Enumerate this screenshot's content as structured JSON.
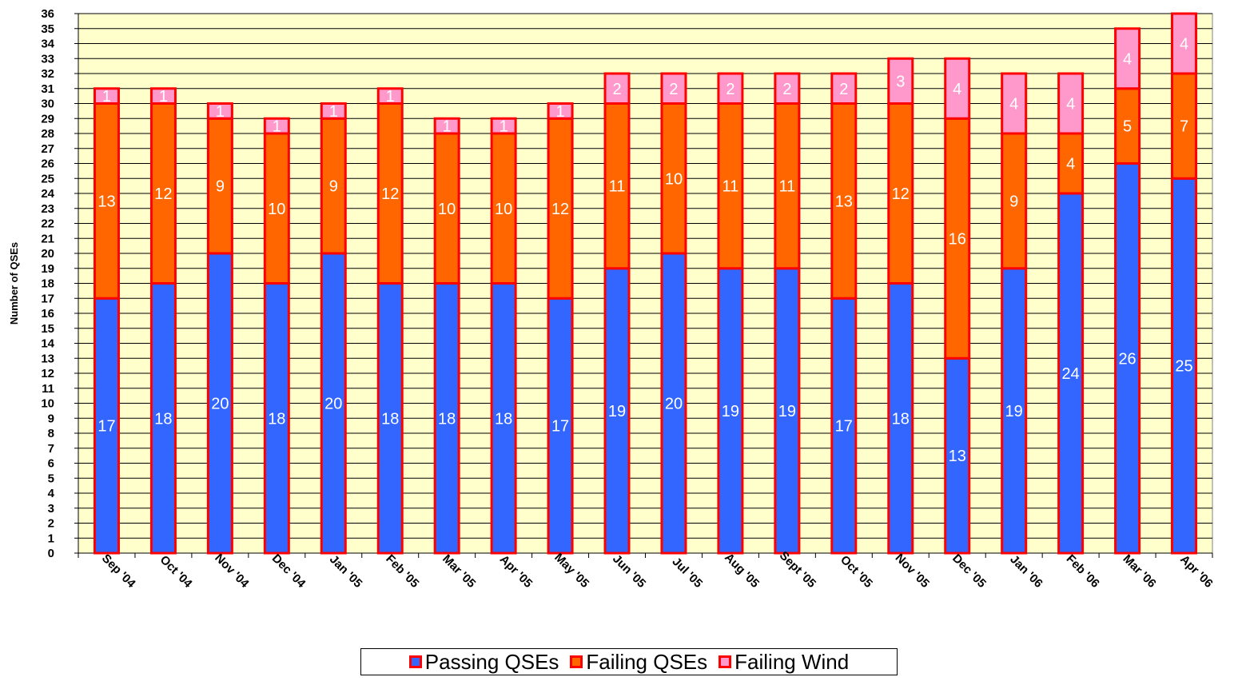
{
  "chart_data": {
    "type": "bar",
    "stacked": true,
    "title": "",
    "xlabel": "",
    "ylabel": "Number of QSEs",
    "ylim": [
      0,
      36
    ],
    "yticks": [
      0,
      1,
      2,
      3,
      4,
      5,
      6,
      7,
      8,
      9,
      10,
      11,
      12,
      13,
      14,
      15,
      16,
      17,
      18,
      19,
      20,
      21,
      22,
      23,
      24,
      25,
      26,
      27,
      28,
      29,
      30,
      31,
      32,
      33,
      34,
      35,
      36
    ],
    "grid": true,
    "legend_position": "bottom",
    "categories": [
      "Sep '04",
      "Oct '04",
      "Nov '04",
      "Dec '04",
      "Jan '05",
      "Feb '05",
      "Mar '05",
      "Apr '05",
      "May '05",
      "Jun '05",
      "Jul '05",
      "Aug '05",
      "Sept '05",
      "Oct '05",
      "Nov '05",
      "Dec '05",
      "Jan '06",
      "Feb '06",
      "Mar '06",
      "Apr '06"
    ],
    "series": [
      {
        "name": "Passing QSEs",
        "color": "#3366ff",
        "values": [
          17,
          18,
          20,
          18,
          20,
          18,
          18,
          18,
          17,
          19,
          20,
          19,
          19,
          17,
          18,
          13,
          19,
          24,
          26,
          25
        ]
      },
      {
        "name": "Failing QSEs",
        "color": "#ff6600",
        "values": [
          13,
          12,
          9,
          10,
          9,
          12,
          10,
          10,
          12,
          11,
          10,
          11,
          11,
          13,
          12,
          16,
          9,
          4,
          5,
          7
        ]
      },
      {
        "name": "Failing Wind",
        "color": "#ff99cc",
        "values": [
          1,
          1,
          1,
          1,
          1,
          1,
          1,
          1,
          1,
          2,
          2,
          2,
          2,
          2,
          3,
          4,
          4,
          4,
          4,
          4
        ]
      }
    ],
    "colors": {
      "plot_background": "#ffffcc",
      "bar_border": "#ff0000",
      "gridline": "#000000",
      "label_text": "#ffffff"
    }
  }
}
